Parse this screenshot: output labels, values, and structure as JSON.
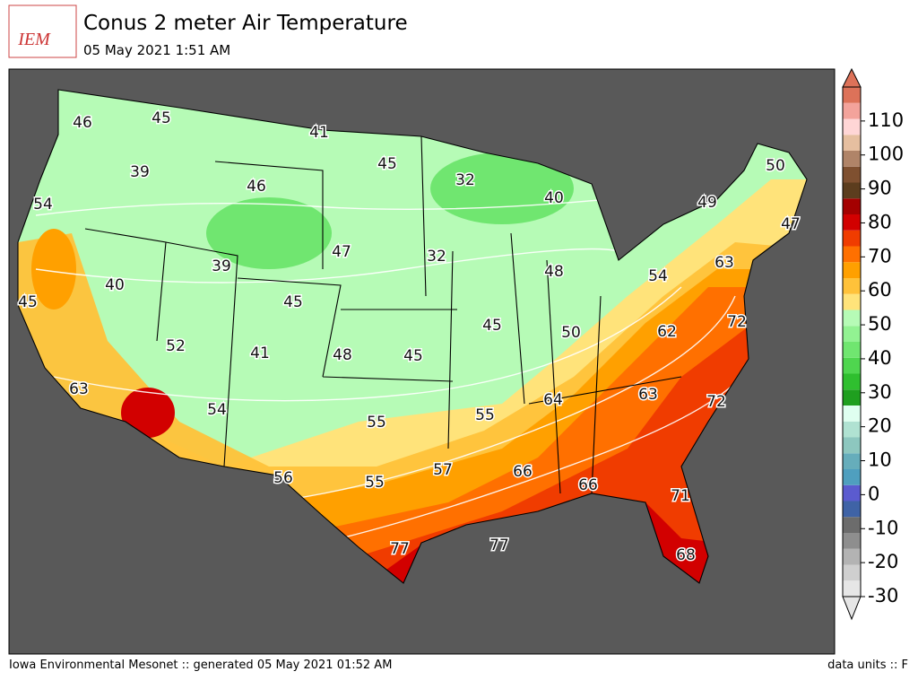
{
  "header": {
    "logo": "IEM",
    "title": "Conus 2 meter Air Temperature",
    "subtitle": "05 May 2021 1:51 AM"
  },
  "footer": {
    "left": "Iowa Environmental Mesonet :: generated 05 May 2021 01:52 AM",
    "right": "data units :: F"
  },
  "map": {
    "values": [
      46,
      45,
      41,
      45,
      39,
      46,
      32,
      40,
      50,
      54,
      49,
      47,
      47,
      32,
      39,
      63,
      48,
      54,
      40,
      45,
      45,
      72,
      45,
      50,
      62,
      52,
      41,
      48,
      45,
      63,
      63,
      64,
      72,
      54,
      55,
      55,
      57,
      66,
      56,
      55,
      66,
      71,
      77,
      77,
      68
    ]
  },
  "colorbar": {
    "lim": [
      -30,
      120
    ],
    "ticks": [
      -30,
      -20,
      -10,
      0,
      10,
      20,
      30,
      40,
      50,
      60,
      70,
      80,
      90,
      100,
      110
    ],
    "colors": [
      "#e6e6e6",
      "#cfcfcf",
      "#b3b3b3",
      "#8e8e8e",
      "#6c6c6c",
      "#3f63a6",
      "#5b5bcf",
      "#4f9fbf",
      "#66adbb",
      "#8dc7bf",
      "#b0e2d2",
      "#dffff0",
      "#1f9f1f",
      "#2fbf2f",
      "#4fd64f",
      "#70e670",
      "#92f292",
      "#b6fbb6",
      "#ffe37a",
      "#ffc23a",
      "#ffa000",
      "#ff7000",
      "#f03c00",
      "#d20000",
      "#a40000",
      "#5c3d1e",
      "#7f5030",
      "#b08468",
      "#e6bfa0",
      "#ffd6d6",
      "#f3a39b",
      "#dd7259"
    ]
  }
}
